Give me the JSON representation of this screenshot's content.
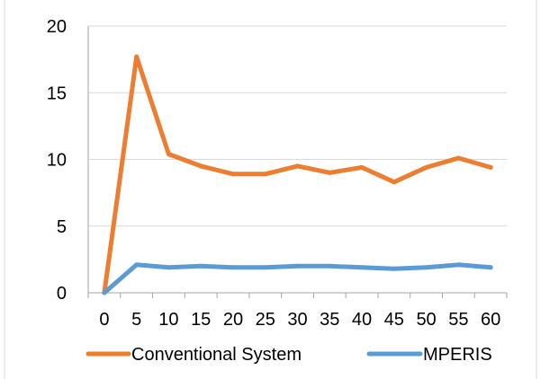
{
  "chart_data": {
    "type": "line",
    "x": [
      "0",
      "5",
      "10",
      "15",
      "20",
      "25",
      "30",
      "35",
      "40",
      "45",
      "50",
      "55",
      "60"
    ],
    "series": [
      {
        "name": "Conventional System",
        "color": "#ed7d31",
        "values": [
          0,
          17.7,
          10.4,
          9.5,
          8.9,
          8.9,
          9.5,
          9.0,
          9.4,
          8.3,
          9.4,
          10.1,
          9.4
        ]
      },
      {
        "name": "MPERIS",
        "color": "#5b9bd5",
        "values": [
          0,
          2.1,
          1.9,
          2.0,
          1.9,
          1.9,
          2.0,
          2.0,
          1.9,
          1.8,
          1.9,
          2.1,
          1.9
        ]
      }
    ],
    "y_ticks": [
      "0",
      "5",
      "10",
      "15",
      "20"
    ],
    "ylim": [
      0,
      20
    ],
    "grid": true,
    "legend_position": "bottom"
  }
}
